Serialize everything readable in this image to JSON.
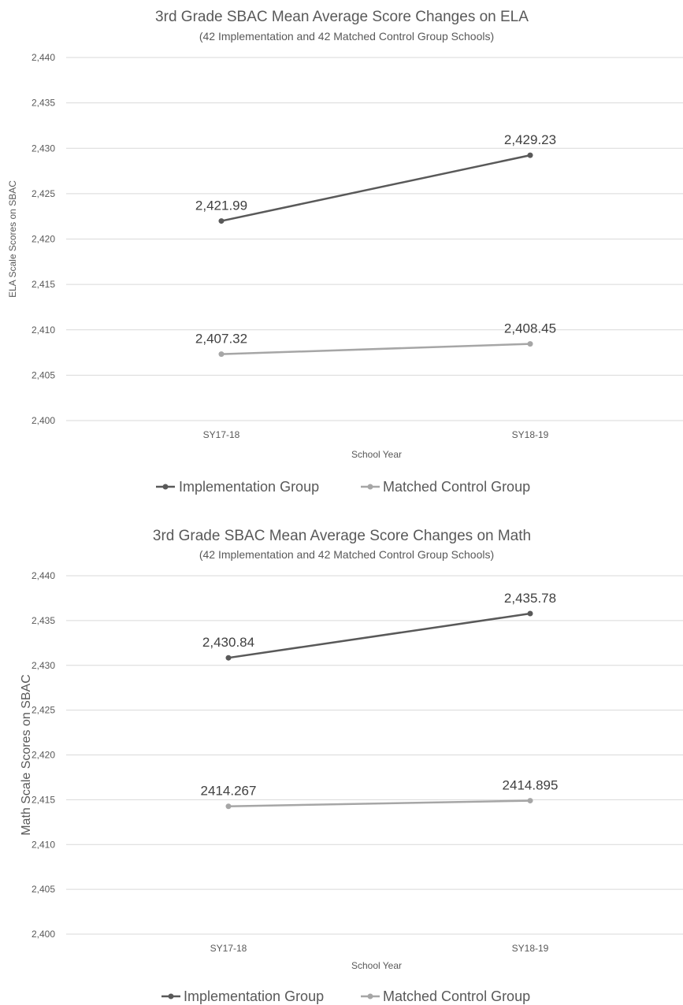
{
  "chart_data": [
    {
      "type": "line",
      "title": "3rd Grade SBAC Mean Average Score Changes on ELA",
      "subtitle": "(42 Implementation and 42 Matched Control Group Schools)",
      "xlabel": "School Year",
      "ylabel": "ELA Scale Scores on SBAC",
      "categories": [
        "SY17-18",
        "SY18-19"
      ],
      "ylim": [
        2400,
        2440
      ],
      "yticks": [
        "2,400",
        "2,405",
        "2,410",
        "2,415",
        "2,420",
        "2,425",
        "2,430",
        "2,435",
        "2,440"
      ],
      "grid": true,
      "legend_position": "bottom",
      "series": [
        {
          "name": "Implementation Group",
          "values": [
            2421.99,
            2429.23
          ],
          "labels": [
            "2,421.99",
            "2,429.23"
          ],
          "color": "#595959"
        },
        {
          "name": "Matched Control Group",
          "values": [
            2407.32,
            2408.45
          ],
          "labels": [
            "2,407.32",
            "2,408.45"
          ],
          "color": "#a6a6a6"
        }
      ]
    },
    {
      "type": "line",
      "title": "3rd Grade SBAC Mean Average Score Changes on Math",
      "subtitle": "(42 Implementation and 42 Matched Control Group Schools)",
      "xlabel": "School Year",
      "ylabel": "Math Scale Scores on SBAC",
      "categories": [
        "SY17-18",
        "SY18-19"
      ],
      "ylim": [
        2400,
        2440
      ],
      "yticks": [
        "2,400",
        "2,405",
        "2,410",
        "2,415",
        "2,420",
        "2,425",
        "2,430",
        "2,435",
        "2,440"
      ],
      "grid": true,
      "legend_position": "bottom",
      "series": [
        {
          "name": "Implementation Group",
          "values": [
            2430.84,
            2435.78
          ],
          "labels": [
            "2,430.84",
            "2,435.78"
          ],
          "color": "#595959"
        },
        {
          "name": "Matched Control Group",
          "values": [
            2414.267,
            2414.895
          ],
          "labels": [
            "2414.267",
            "2414.895"
          ],
          "color": "#a6a6a6"
        }
      ]
    }
  ]
}
